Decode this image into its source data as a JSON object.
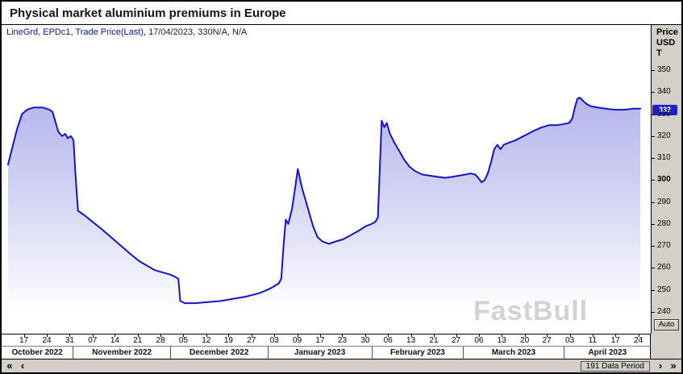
{
  "window": {
    "title": "Physical market aluminium premiums in Europe"
  },
  "legend": {
    "series_part": "LineGrd, EPDc1, Trade Price(Last),",
    "values_part": " 17/04/2023, 330N/A, N/A"
  },
  "y_axis": {
    "title": "Price\nUSD\nT",
    "auto_label": "Auto",
    "last_price_label": "332"
  },
  "watermark": {
    "text": "FastBull"
  },
  "scrollbar": {
    "far_left": "«",
    "step_left": "‹",
    "step_right": "›",
    "far_right": "»",
    "data_period": "191 Data Period"
  },
  "colors": {
    "line": "#1414cc",
    "fill_top": "#a0a0e8",
    "marker": "#1f1fd0",
    "chrome": "#d4d0c8"
  },
  "chart_data": {
    "type": "area",
    "title": "Physical market aluminium premiums in Europe",
    "ylabel": "Price USD T",
    "ylim": [
      240,
      350
    ],
    "y_ticks": [
      350,
      340,
      330,
      320,
      310,
      300,
      290,
      280,
      270,
      260,
      250,
      240
    ],
    "y_bold_tick": 300,
    "last_price": 332,
    "legend_text": "LineGrd, EPDc1, Trade Price(Last), 17/04/2023, 330N/A, N/A",
    "x_tick_labels": [
      {
        "f": 0.025,
        "label": "17"
      },
      {
        "f": 0.061,
        "label": "24"
      },
      {
        "f": 0.097,
        "label": "31"
      },
      {
        "f": 0.133,
        "label": "07"
      },
      {
        "f": 0.168,
        "label": "14"
      },
      {
        "f": 0.204,
        "label": "21"
      },
      {
        "f": 0.24,
        "label": "28"
      },
      {
        "f": 0.276,
        "label": "05"
      },
      {
        "f": 0.312,
        "label": "12"
      },
      {
        "f": 0.347,
        "label": "19"
      },
      {
        "f": 0.383,
        "label": "27"
      },
      {
        "f": 0.419,
        "label": "03"
      },
      {
        "f": 0.455,
        "label": "09"
      },
      {
        "f": 0.491,
        "label": "17"
      },
      {
        "f": 0.526,
        "label": "23"
      },
      {
        "f": 0.562,
        "label": "30"
      },
      {
        "f": 0.598,
        "label": "06"
      },
      {
        "f": 0.634,
        "label": "13"
      },
      {
        "f": 0.67,
        "label": "21"
      },
      {
        "f": 0.705,
        "label": "27"
      },
      {
        "f": 0.741,
        "label": "06"
      },
      {
        "f": 0.777,
        "label": "13"
      },
      {
        "f": 0.813,
        "label": "20"
      },
      {
        "f": 0.848,
        "label": "27"
      },
      {
        "f": 0.884,
        "label": "03"
      },
      {
        "f": 0.92,
        "label": "11"
      },
      {
        "f": 0.956,
        "label": "17"
      },
      {
        "f": 0.992,
        "label": "24"
      }
    ],
    "months": [
      {
        "label": "October 2022",
        "start": 0,
        "end": 0.102
      },
      {
        "label": "November 2022",
        "start": 0.102,
        "end": 0.255
      },
      {
        "label": "December 2022",
        "start": 0.255,
        "end": 0.408
      },
      {
        "label": "January 2023",
        "start": 0.408,
        "end": 0.572
      },
      {
        "label": "February 2023",
        "start": 0.572,
        "end": 0.716
      },
      {
        "label": "March 2023",
        "start": 0.716,
        "end": 0.874
      },
      {
        "label": "April 2023",
        "start": 0.874,
        "end": 1.0
      }
    ],
    "series": [
      {
        "name": "EPDc1 Trade Price(Last)",
        "points": [
          [
            0.0,
            307
          ],
          [
            0.006,
            314
          ],
          [
            0.014,
            323
          ],
          [
            0.022,
            330
          ],
          [
            0.03,
            332
          ],
          [
            0.04,
            333
          ],
          [
            0.055,
            333
          ],
          [
            0.065,
            332
          ],
          [
            0.07,
            331
          ],
          [
            0.074,
            327
          ],
          [
            0.079,
            322
          ],
          [
            0.085,
            320
          ],
          [
            0.09,
            321
          ],
          [
            0.094,
            319
          ],
          [
            0.099,
            320
          ],
          [
            0.103,
            318
          ],
          [
            0.106,
            303
          ],
          [
            0.11,
            286
          ],
          [
            0.12,
            284
          ],
          [
            0.133,
            281
          ],
          [
            0.146,
            278
          ],
          [
            0.158,
            275
          ],
          [
            0.17,
            272
          ],
          [
            0.182,
            269
          ],
          [
            0.194,
            266
          ],
          [
            0.207,
            263
          ],
          [
            0.219,
            261
          ],
          [
            0.231,
            259
          ],
          [
            0.243,
            258
          ],
          [
            0.255,
            257
          ],
          [
            0.263,
            256
          ],
          [
            0.268,
            255
          ],
          [
            0.271,
            245
          ],
          [
            0.278,
            244
          ],
          [
            0.295,
            244
          ],
          [
            0.315,
            244.5
          ],
          [
            0.335,
            245
          ],
          [
            0.355,
            246
          ],
          [
            0.375,
            247
          ],
          [
            0.395,
            248.5
          ],
          [
            0.408,
            250
          ],
          [
            0.418,
            251.5
          ],
          [
            0.426,
            253
          ],
          [
            0.43,
            255
          ],
          [
            0.434,
            272
          ],
          [
            0.437,
            282
          ],
          [
            0.441,
            280
          ],
          [
            0.447,
            287
          ],
          [
            0.452,
            297
          ],
          [
            0.456,
            305
          ],
          [
            0.459,
            301
          ],
          [
            0.463,
            296
          ],
          [
            0.468,
            291
          ],
          [
            0.474,
            285
          ],
          [
            0.48,
            279
          ],
          [
            0.487,
            274
          ],
          [
            0.495,
            272
          ],
          [
            0.505,
            271
          ],
          [
            0.515,
            272
          ],
          [
            0.527,
            273
          ],
          [
            0.54,
            275
          ],
          [
            0.552,
            277
          ],
          [
            0.563,
            279
          ],
          [
            0.572,
            280
          ],
          [
            0.578,
            281
          ],
          [
            0.582,
            283
          ],
          [
            0.585,
            305
          ],
          [
            0.588,
            327
          ],
          [
            0.592,
            324
          ],
          [
            0.596,
            326
          ],
          [
            0.601,
            321
          ],
          [
            0.608,
            317
          ],
          [
            0.616,
            313
          ],
          [
            0.624,
            309
          ],
          [
            0.632,
            306
          ],
          [
            0.641,
            304
          ],
          [
            0.652,
            302.5
          ],
          [
            0.663,
            302
          ],
          [
            0.675,
            301.5
          ],
          [
            0.688,
            301
          ],
          [
            0.7,
            301.5
          ],
          [
            0.71,
            302
          ],
          [
            0.72,
            302.5
          ],
          [
            0.728,
            303
          ],
          [
            0.735,
            302.5
          ],
          [
            0.74,
            301
          ],
          [
            0.745,
            299
          ],
          [
            0.75,
            300
          ],
          [
            0.755,
            303
          ],
          [
            0.76,
            308
          ],
          [
            0.765,
            314
          ],
          [
            0.77,
            316
          ],
          [
            0.775,
            314
          ],
          [
            0.78,
            316
          ],
          [
            0.788,
            317
          ],
          [
            0.798,
            318
          ],
          [
            0.808,
            319.5
          ],
          [
            0.818,
            321
          ],
          [
            0.828,
            322.5
          ],
          [
            0.84,
            324
          ],
          [
            0.852,
            325
          ],
          [
            0.865,
            325
          ],
          [
            0.875,
            325.5
          ],
          [
            0.883,
            326
          ],
          [
            0.888,
            328
          ],
          [
            0.892,
            333
          ],
          [
            0.896,
            337
          ],
          [
            0.9,
            337.5
          ],
          [
            0.905,
            336
          ],
          [
            0.911,
            334.5
          ],
          [
            0.918,
            333.5
          ],
          [
            0.928,
            333
          ],
          [
            0.94,
            332.5
          ],
          [
            0.955,
            332
          ],
          [
            0.97,
            332
          ],
          [
            0.985,
            332.5
          ],
          [
            0.995,
            332.5
          ]
        ]
      }
    ]
  }
}
